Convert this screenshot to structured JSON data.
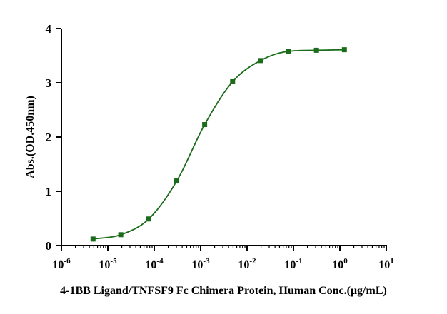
{
  "colors": {
    "axis": "#000000",
    "series": "#1a6b1a",
    "background": "#ffffff"
  },
  "chart_data": {
    "type": "scatter",
    "title": "",
    "xlabel": "4-1BB Ligand/TNFSF9 Fc Chimera Protein, Human  Conc.(μg/mL)",
    "ylabel": "Abs.(OD.450nm)",
    "x_scale": "log",
    "xlim": [
      1e-06,
      10
    ],
    "ylim": [
      0,
      4
    ],
    "x_ticks": [
      {
        "base": "10",
        "exp": "-6",
        "value": 1e-06
      },
      {
        "base": "10",
        "exp": "-5",
        "value": 1e-05
      },
      {
        "base": "10",
        "exp": "-4",
        "value": 0.0001
      },
      {
        "base": "10",
        "exp": "-3",
        "value": 0.001
      },
      {
        "base": "10",
        "exp": "-2",
        "value": 0.01
      },
      {
        "base": "10",
        "exp": "-1",
        "value": 0.1
      },
      {
        "base": "10",
        "exp": "0",
        "value": 1
      },
      {
        "base": "10",
        "exp": "1",
        "value": 10
      }
    ],
    "y_ticks": [
      "0",
      "1",
      "2",
      "3",
      "4"
    ],
    "grid": false,
    "legend": "none",
    "series": [
      {
        "marker": "square",
        "fit": "sigmoidal",
        "x": [
          4.8e-06,
          1.9e-05,
          7.6e-05,
          0.000305,
          0.00122,
          0.00488,
          0.0195,
          0.0781,
          0.3125,
          1.25
        ],
        "y": [
          0.12,
          0.2,
          0.49,
          1.19,
          2.23,
          3.02,
          3.41,
          3.58,
          3.6,
          3.61
        ]
      }
    ]
  }
}
